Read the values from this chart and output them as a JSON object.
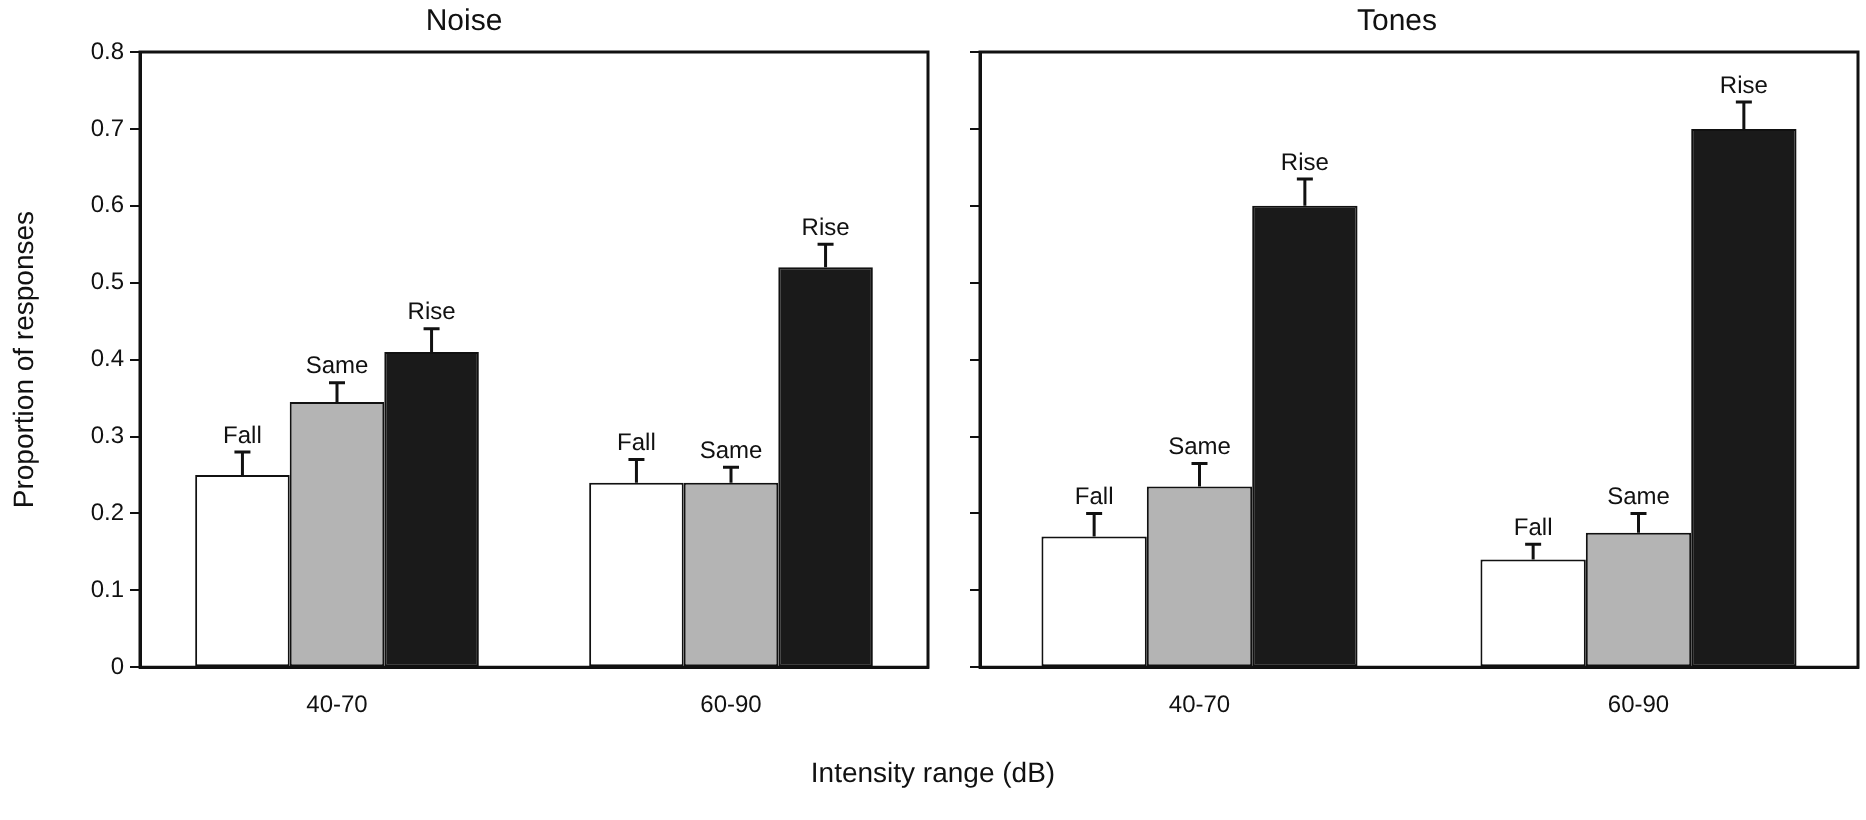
{
  "chart_data": [
    {
      "type": "bar",
      "title": "Noise",
      "ylabel": "Proportion of responses",
      "xlabel": "Intensity range (dB)",
      "categories": [
        "40-70",
        "60-90"
      ],
      "ylim": [
        0,
        0.8
      ],
      "yticks": [
        0,
        0.1,
        0.2,
        0.3,
        0.4,
        0.5,
        0.6,
        0.7,
        0.8
      ],
      "legend": false,
      "series": [
        {
          "name": "Fall",
          "color": "#ffffff",
          "values": [
            0.25,
            0.24
          ],
          "errors": [
            0.03,
            0.03
          ]
        },
        {
          "name": "Same",
          "color": "#b4b4b4",
          "values": [
            0.345,
            0.24
          ],
          "errors": [
            0.025,
            0.02
          ]
        },
        {
          "name": "Rise",
          "color": "#1a1a1a",
          "values": [
            0.41,
            0.52
          ],
          "errors": [
            0.03,
            0.03
          ]
        }
      ]
    },
    {
      "type": "bar",
      "title": "Tones",
      "categories": [
        "40-70",
        "60-90"
      ],
      "ylim": [
        0,
        0.8
      ],
      "yticks": [
        {
          "value": 0,
          "label": null
        },
        {
          "value": 0.1,
          "label": null
        },
        {
          "value": 0.2,
          "label": null
        },
        {
          "value": 0.3,
          "label": null
        },
        {
          "value": 0.4,
          "label": null
        },
        {
          "value": 0.5,
          "label": null
        },
        {
          "value": 0.6,
          "label": null
        },
        {
          "value": 0.7,
          "label": null
        },
        {
          "value": 0.8,
          "label": null
        }
      ],
      "tick_labels": "x",
      "legend": false,
      "series": [
        {
          "name": "Fall",
          "color": "#ffffff",
          "values": [
            0.17,
            0.14
          ],
          "errors": [
            0.03,
            0.02
          ]
        },
        {
          "name": "Same",
          "color": "#b4b4b4",
          "values": [
            0.235,
            0.175
          ],
          "errors": [
            0.03,
            0.025
          ]
        },
        {
          "name": "Rise",
          "color": "#1a1a1a",
          "values": [
            0.6,
            0.7
          ],
          "errors": [
            0.035,
            0.035
          ]
        }
      ]
    }
  ]
}
